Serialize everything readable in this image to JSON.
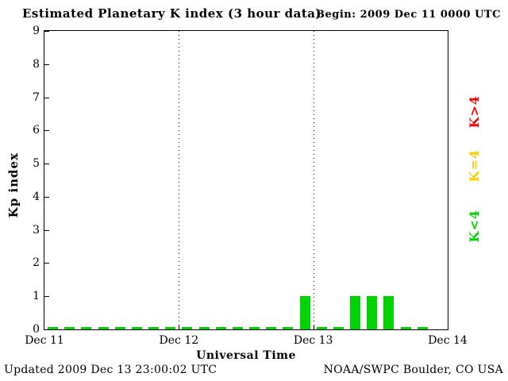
{
  "header": {
    "title": "Estimated Planetary K index (3 hour data)",
    "begin": "Begin:  2009 Dec 11 0000 UTC"
  },
  "footer": {
    "updated": "Updated 2009 Dec 13 23:00:02 UTC",
    "credit": "NOAA/SWPC Boulder, CO USA"
  },
  "chart_data": {
    "type": "bar",
    "title": "Estimated Planetary K index (3 hour data)",
    "xlabel": "Universal Time",
    "ylabel": "Kp index",
    "ylim": [
      0,
      9
    ],
    "y_ticks": [
      0,
      1,
      2,
      3,
      4,
      5,
      6,
      7,
      8,
      9
    ],
    "x_ticks": [
      "Dec 11",
      "Dec 12",
      "Dec 13",
      "Dec 14"
    ],
    "grid": "vertical-dotted-at-day-boundaries",
    "interval_hours": 3,
    "bars_per_day": 8,
    "values": [
      0,
      0,
      0,
      0,
      0,
      0,
      0,
      0,
      0,
      0,
      0,
      0,
      0,
      0,
      0,
      1,
      0,
      0,
      1,
      1,
      1,
      0,
      0
    ],
    "legend": [
      {
        "label": "K>4",
        "color": "#ff0000"
      },
      {
        "label": "K=4",
        "color": "#ffcc00"
      },
      {
        "label": "K<4",
        "color": "#00d400"
      }
    ],
    "legend_position": "right-rotated",
    "bar_colors": {
      "low": "#00d400",
      "mid": "#ffcc00",
      "high": "#ff0000"
    }
  }
}
